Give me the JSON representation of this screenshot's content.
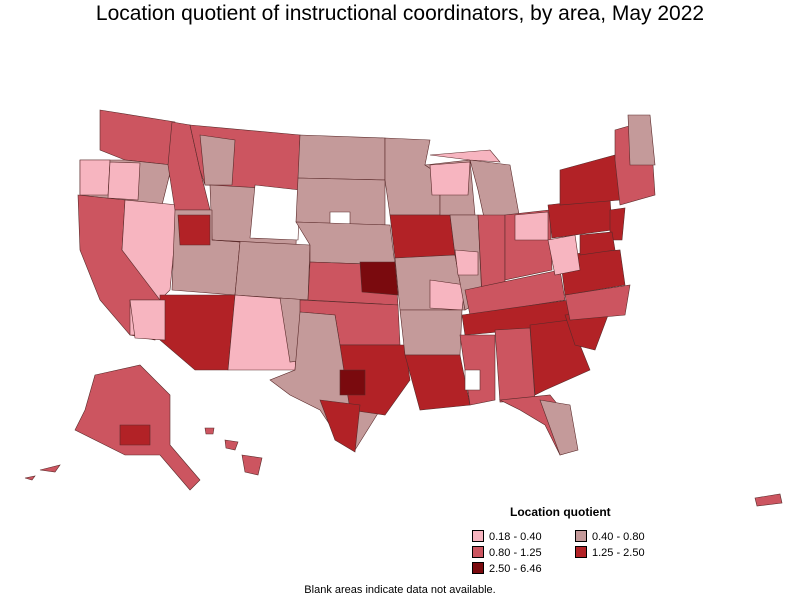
{
  "title": "Location quotient of instructional coordinators, by area, May 2022",
  "legend": {
    "title": "Location quotient",
    "items": [
      {
        "label": "0.18 - 0.40",
        "color": "#f7b5c0"
      },
      {
        "label": "0.40 - 0.80",
        "color": "#c49a9a"
      },
      {
        "label": "0.80 - 1.25",
        "color": "#cc5560"
      },
      {
        "label": "1.25 - 2.50",
        "color": "#b22226"
      },
      {
        "label": "2.50 - 6.46",
        "color": "#7a0a0e"
      }
    ]
  },
  "footnote": "Blank areas indicate data not available.",
  "colors": {
    "border": "#5a2a2a",
    "no_data": "#ffffff"
  }
}
